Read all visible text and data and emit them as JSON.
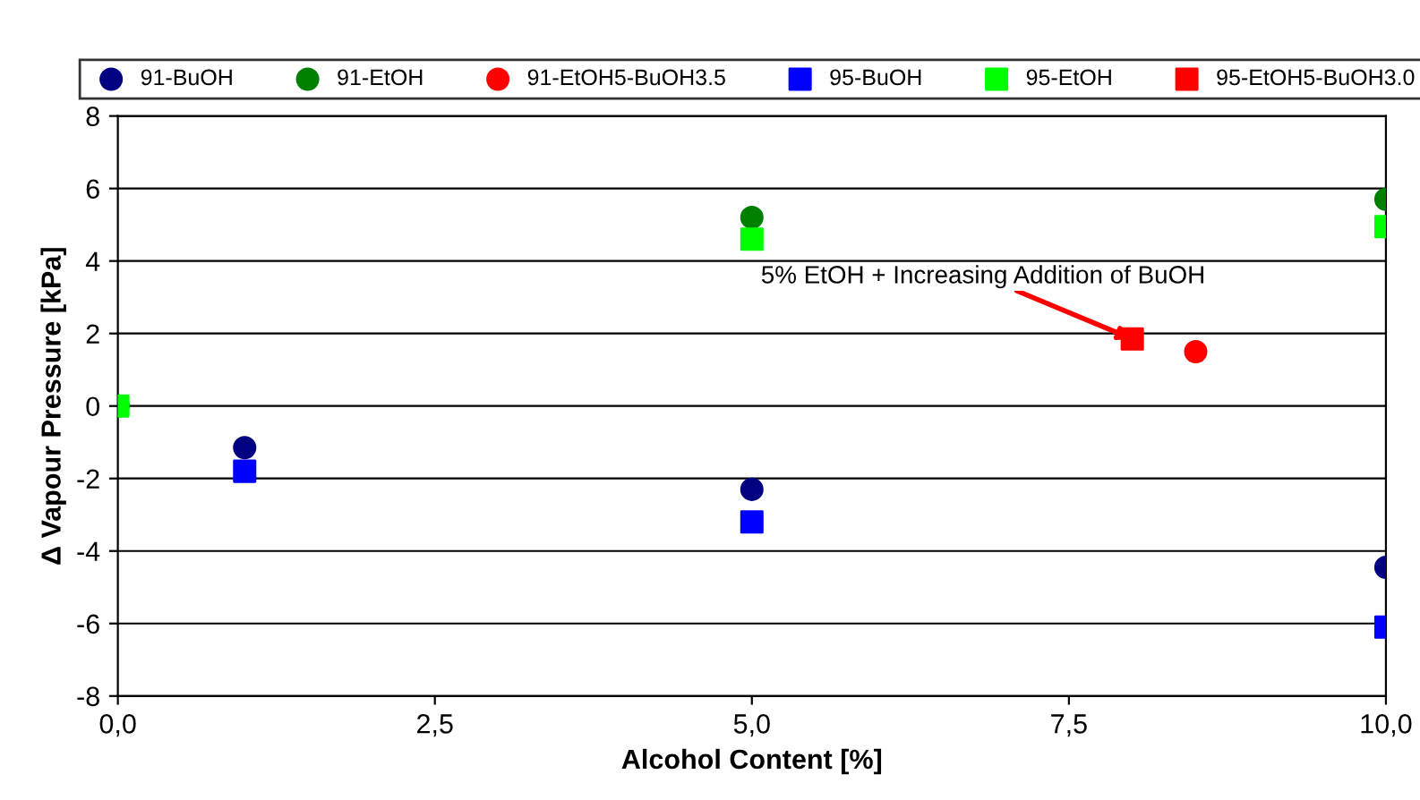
{
  "chart_data": {
    "type": "scatter",
    "xlabel": "Alcohol Content [%]",
    "ylabel": "Δ Vapour Pressure [kPa]",
    "xlim": [
      0,
      10
    ],
    "xticks": [
      {
        "value": 0,
        "label": "0,0"
      },
      {
        "value": 2.5,
        "label": "2,5"
      },
      {
        "value": 5,
        "label": "5,0"
      },
      {
        "value": 7.5,
        "label": "7,5"
      },
      {
        "value": 10,
        "label": "10,0"
      }
    ],
    "ylim": [
      -8,
      8
    ],
    "yticks": [
      -8,
      -6,
      -4,
      -2,
      0,
      2,
      4,
      6,
      8
    ],
    "grid": "y",
    "legend": "top",
    "series": [
      {
        "name": "91-BuOH",
        "color": "#000080",
        "marker": "circle",
        "x": [
          0,
          1,
          5,
          10
        ],
        "values": [
          0,
          -1.15,
          -2.3,
          -4.45
        ]
      },
      {
        "name": "91-EtOH",
        "color": "#008000",
        "marker": "circle",
        "x": [
          0,
          5,
          10
        ],
        "values": [
          0,
          5.2,
          5.7
        ]
      },
      {
        "name": "91-EtOH5-BuOH3.5",
        "color": "#ff0000",
        "marker": "circle",
        "x": [
          8.5
        ],
        "values": [
          1.5
        ]
      },
      {
        "name": "95-BuOH",
        "color": "#0000ff",
        "marker": "square",
        "x": [
          1,
          5,
          10
        ],
        "values": [
          -1.8,
          -3.2,
          -6.1
        ]
      },
      {
        "name": "95-EtOH",
        "color": "#00ff00",
        "marker": "square",
        "x": [
          0,
          5,
          10
        ],
        "values": [
          0,
          4.6,
          4.95
        ]
      },
      {
        "name": "95-EtOH5-BuOH3.0",
        "color": "#ff0000",
        "marker": "square",
        "x": [
          8
        ],
        "values": [
          1.85
        ]
      }
    ],
    "annotations": [
      {
        "text": "5% EtOH + Increasing Addition of BuOH",
        "x": 8,
        "y": 1.85
      }
    ]
  }
}
